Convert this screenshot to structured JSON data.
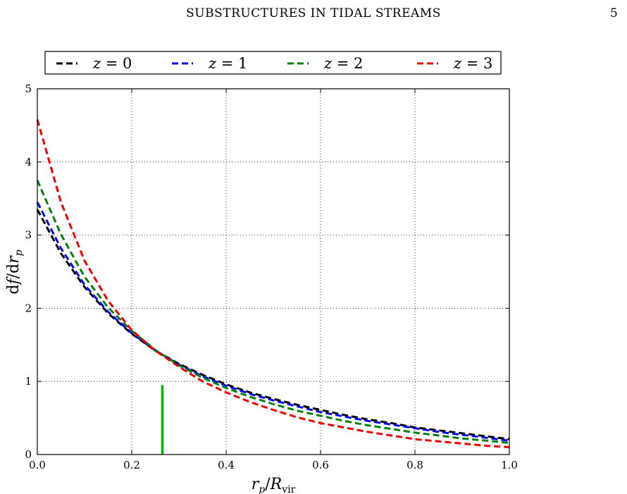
{
  "page": {
    "header_title": "SUBSTRUCTURES IN TIDAL STREAMS",
    "page_number": "5"
  },
  "chart_data": {
    "type": "line",
    "xlabel_main": "r",
    "xlabel_sub": "p",
    "xlabel_mid": "/",
    "xlabel_R": "R",
    "xlabel_R_sub": "vir",
    "ylabel_d1": "d",
    "ylabel_f": "f",
    "ylabel_slash": "/d",
    "ylabel_r": "r",
    "ylabel_sub": "p",
    "xlim": [
      0,
      1
    ],
    "ylim": [
      0,
      5
    ],
    "xticks": [
      0.0,
      0.2,
      0.4,
      0.6,
      0.8,
      1.0
    ],
    "xtick_labels": [
      "0.0",
      "0.2",
      "0.4",
      "0.6",
      "0.8",
      "1.0"
    ],
    "yticks": [
      0,
      1,
      2,
      3,
      4,
      5
    ],
    "ytick_labels": [
      "0",
      "1",
      "2",
      "3",
      "4",
      "5"
    ],
    "grid": true,
    "legend_position": "top",
    "legend_var": "z",
    "legend_eq": "=",
    "series": [
      {
        "name": "z = 0",
        "legend_value": "0",
        "color": "#000000",
        "style": "dashed",
        "x": [
          0.0,
          0.05,
          0.1,
          0.15,
          0.2,
          0.25,
          0.3,
          0.35,
          0.4,
          0.45,
          0.5,
          0.55,
          0.6,
          0.65,
          0.7,
          0.75,
          0.8,
          0.85,
          0.9,
          0.95,
          1.0
        ],
        "y": [
          3.35,
          2.75,
          2.29,
          1.93,
          1.65,
          1.42,
          1.24,
          1.09,
          0.96,
          0.85,
          0.76,
          0.68,
          0.61,
          0.54,
          0.48,
          0.43,
          0.37,
          0.33,
          0.29,
          0.25,
          0.21
        ]
      },
      {
        "name": "z = 1",
        "legend_value": "1",
        "color": "#0000ee",
        "style": "dashed",
        "x": [
          0.0,
          0.05,
          0.1,
          0.15,
          0.2,
          0.25,
          0.3,
          0.35,
          0.4,
          0.45,
          0.5,
          0.55,
          0.6,
          0.65,
          0.7,
          0.75,
          0.8,
          0.85,
          0.9,
          0.95,
          1.0
        ],
        "y": [
          3.45,
          2.82,
          2.32,
          1.95,
          1.66,
          1.42,
          1.23,
          1.07,
          0.94,
          0.83,
          0.74,
          0.66,
          0.58,
          0.52,
          0.46,
          0.41,
          0.36,
          0.31,
          0.27,
          0.23,
          0.19
        ]
      },
      {
        "name": "z = 2",
        "legend_value": "2",
        "color": "#00800d",
        "style": "dashed",
        "x": [
          0.0,
          0.05,
          0.1,
          0.15,
          0.2,
          0.25,
          0.3,
          0.35,
          0.4,
          0.45,
          0.5,
          0.55,
          0.6,
          0.65,
          0.7,
          0.75,
          0.8,
          0.85,
          0.9,
          0.95,
          1.0
        ],
        "y": [
          3.75,
          3.01,
          2.43,
          2.01,
          1.69,
          1.43,
          1.22,
          1.05,
          0.91,
          0.79,
          0.69,
          0.6,
          0.53,
          0.46,
          0.4,
          0.35,
          0.3,
          0.26,
          0.22,
          0.19,
          0.16
        ]
      },
      {
        "name": "z = 3",
        "legend_value": "3",
        "color": "#ee0000",
        "style": "dashed",
        "x": [
          0.0,
          0.05,
          0.1,
          0.15,
          0.2,
          0.25,
          0.3,
          0.35,
          0.4,
          0.45,
          0.5,
          0.55,
          0.6,
          0.65,
          0.7,
          0.75,
          0.8,
          0.85,
          0.9,
          0.95,
          1.0
        ],
        "y": [
          4.58,
          3.45,
          2.65,
          2.1,
          1.7,
          1.42,
          1.2,
          1.0,
          0.85,
          0.72,
          0.61,
          0.51,
          0.43,
          0.37,
          0.31,
          0.26,
          0.21,
          0.18,
          0.15,
          0.12,
          0.1
        ]
      }
    ],
    "marker": {
      "x": 0.265,
      "y0": 0.0,
      "y1": 0.95,
      "color": "#00bb00"
    }
  }
}
